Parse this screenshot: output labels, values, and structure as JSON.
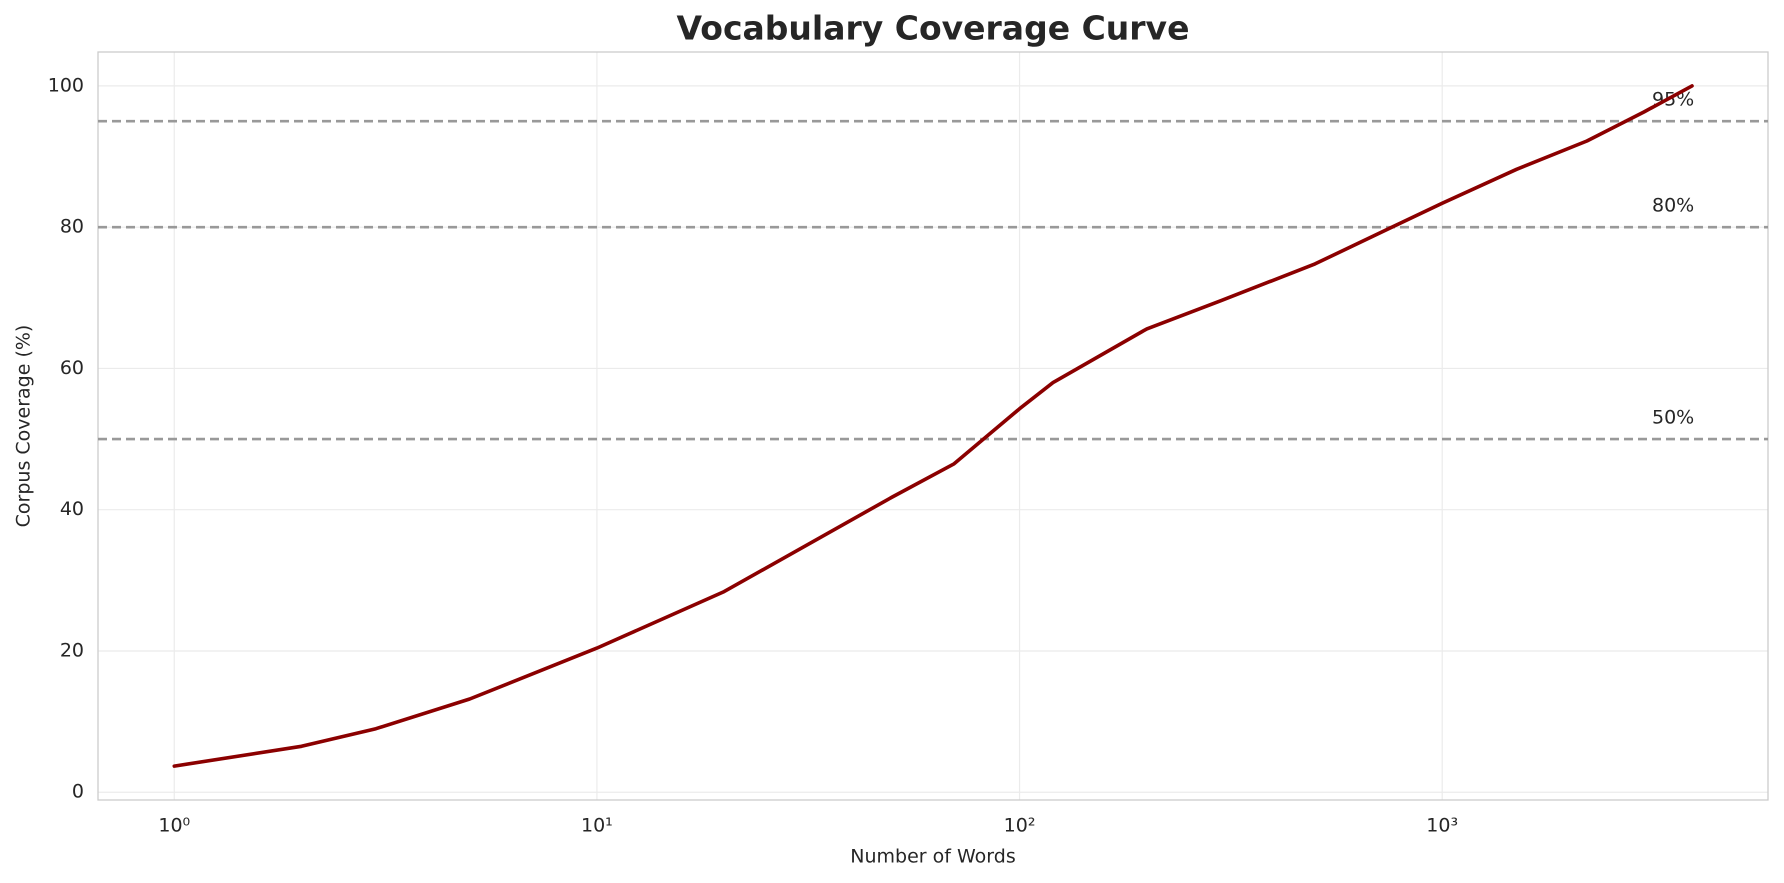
{
  "chart_data": {
    "type": "line",
    "title": "Vocabulary Coverage Curve",
    "xlabel": "Number of Words",
    "ylabel": "Corpus Coverage (%)",
    "xscale": "log",
    "grid": true,
    "color": "#8b0000",
    "x": [
      1,
      2,
      3,
      5,
      10,
      20,
      50,
      70,
      100,
      120,
      200,
      300,
      500,
      1000,
      1500,
      2200,
      3000,
      3900
    ],
    "values": [
      3.7,
      6.5,
      9.0,
      13.2,
      20.4,
      28.4,
      41.8,
      46.5,
      54.3,
      58.0,
      65.6,
      69.6,
      74.8,
      83.4,
      88.2,
      92.2,
      96.3,
      100
    ],
    "xlim": [
      0.66,
      5900
    ],
    "ylim": [
      -1.1,
      104.8
    ],
    "xticks": [
      {
        "value": 1,
        "label": "10⁰"
      },
      {
        "value": 10,
        "label": "10¹"
      },
      {
        "value": 100,
        "label": "10²"
      },
      {
        "value": 1000,
        "label": "10³"
      }
    ],
    "yticks": [
      0,
      20,
      40,
      60,
      80,
      100
    ],
    "hlines": [
      {
        "value": 50,
        "label": "50%"
      },
      {
        "value": 80,
        "label": "80%"
      },
      {
        "value": 95,
        "label": "95%"
      }
    ]
  }
}
